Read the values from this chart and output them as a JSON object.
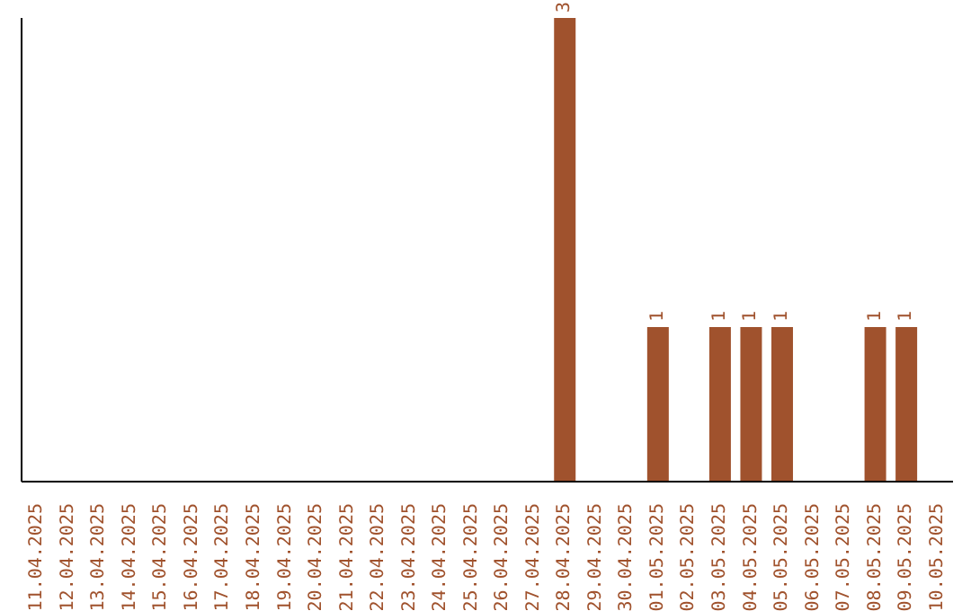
{
  "chart_data": {
    "type": "bar",
    "categories": [
      "11.04.2025",
      "12.04.2025",
      "13.04.2025",
      "14.04.2025",
      "15.04.2025",
      "16.04.2025",
      "17.04.2025",
      "18.04.2025",
      "19.04.2025",
      "20.04.2025",
      "21.04.2025",
      "22.04.2025",
      "23.04.2025",
      "24.04.2025",
      "25.04.2025",
      "26.04.2025",
      "27.04.2025",
      "28.04.2025",
      "29.04.2025",
      "30.04.2025",
      "01.05.2025",
      "02.05.2025",
      "03.05.2025",
      "04.05.2025",
      "05.05.2025",
      "06.05.2025",
      "07.05.2025",
      "08.05.2025",
      "09.05.2025",
      "10.05.2025"
    ],
    "values": [
      null,
      null,
      null,
      null,
      null,
      null,
      null,
      null,
      null,
      null,
      null,
      null,
      null,
      null,
      null,
      null,
      null,
      3,
      null,
      null,
      1,
      null,
      1,
      1,
      1,
      null,
      null,
      1,
      1,
      null
    ],
    "data_labels": true,
    "color": "#a0522d",
    "grid": false,
    "legend": false
  }
}
